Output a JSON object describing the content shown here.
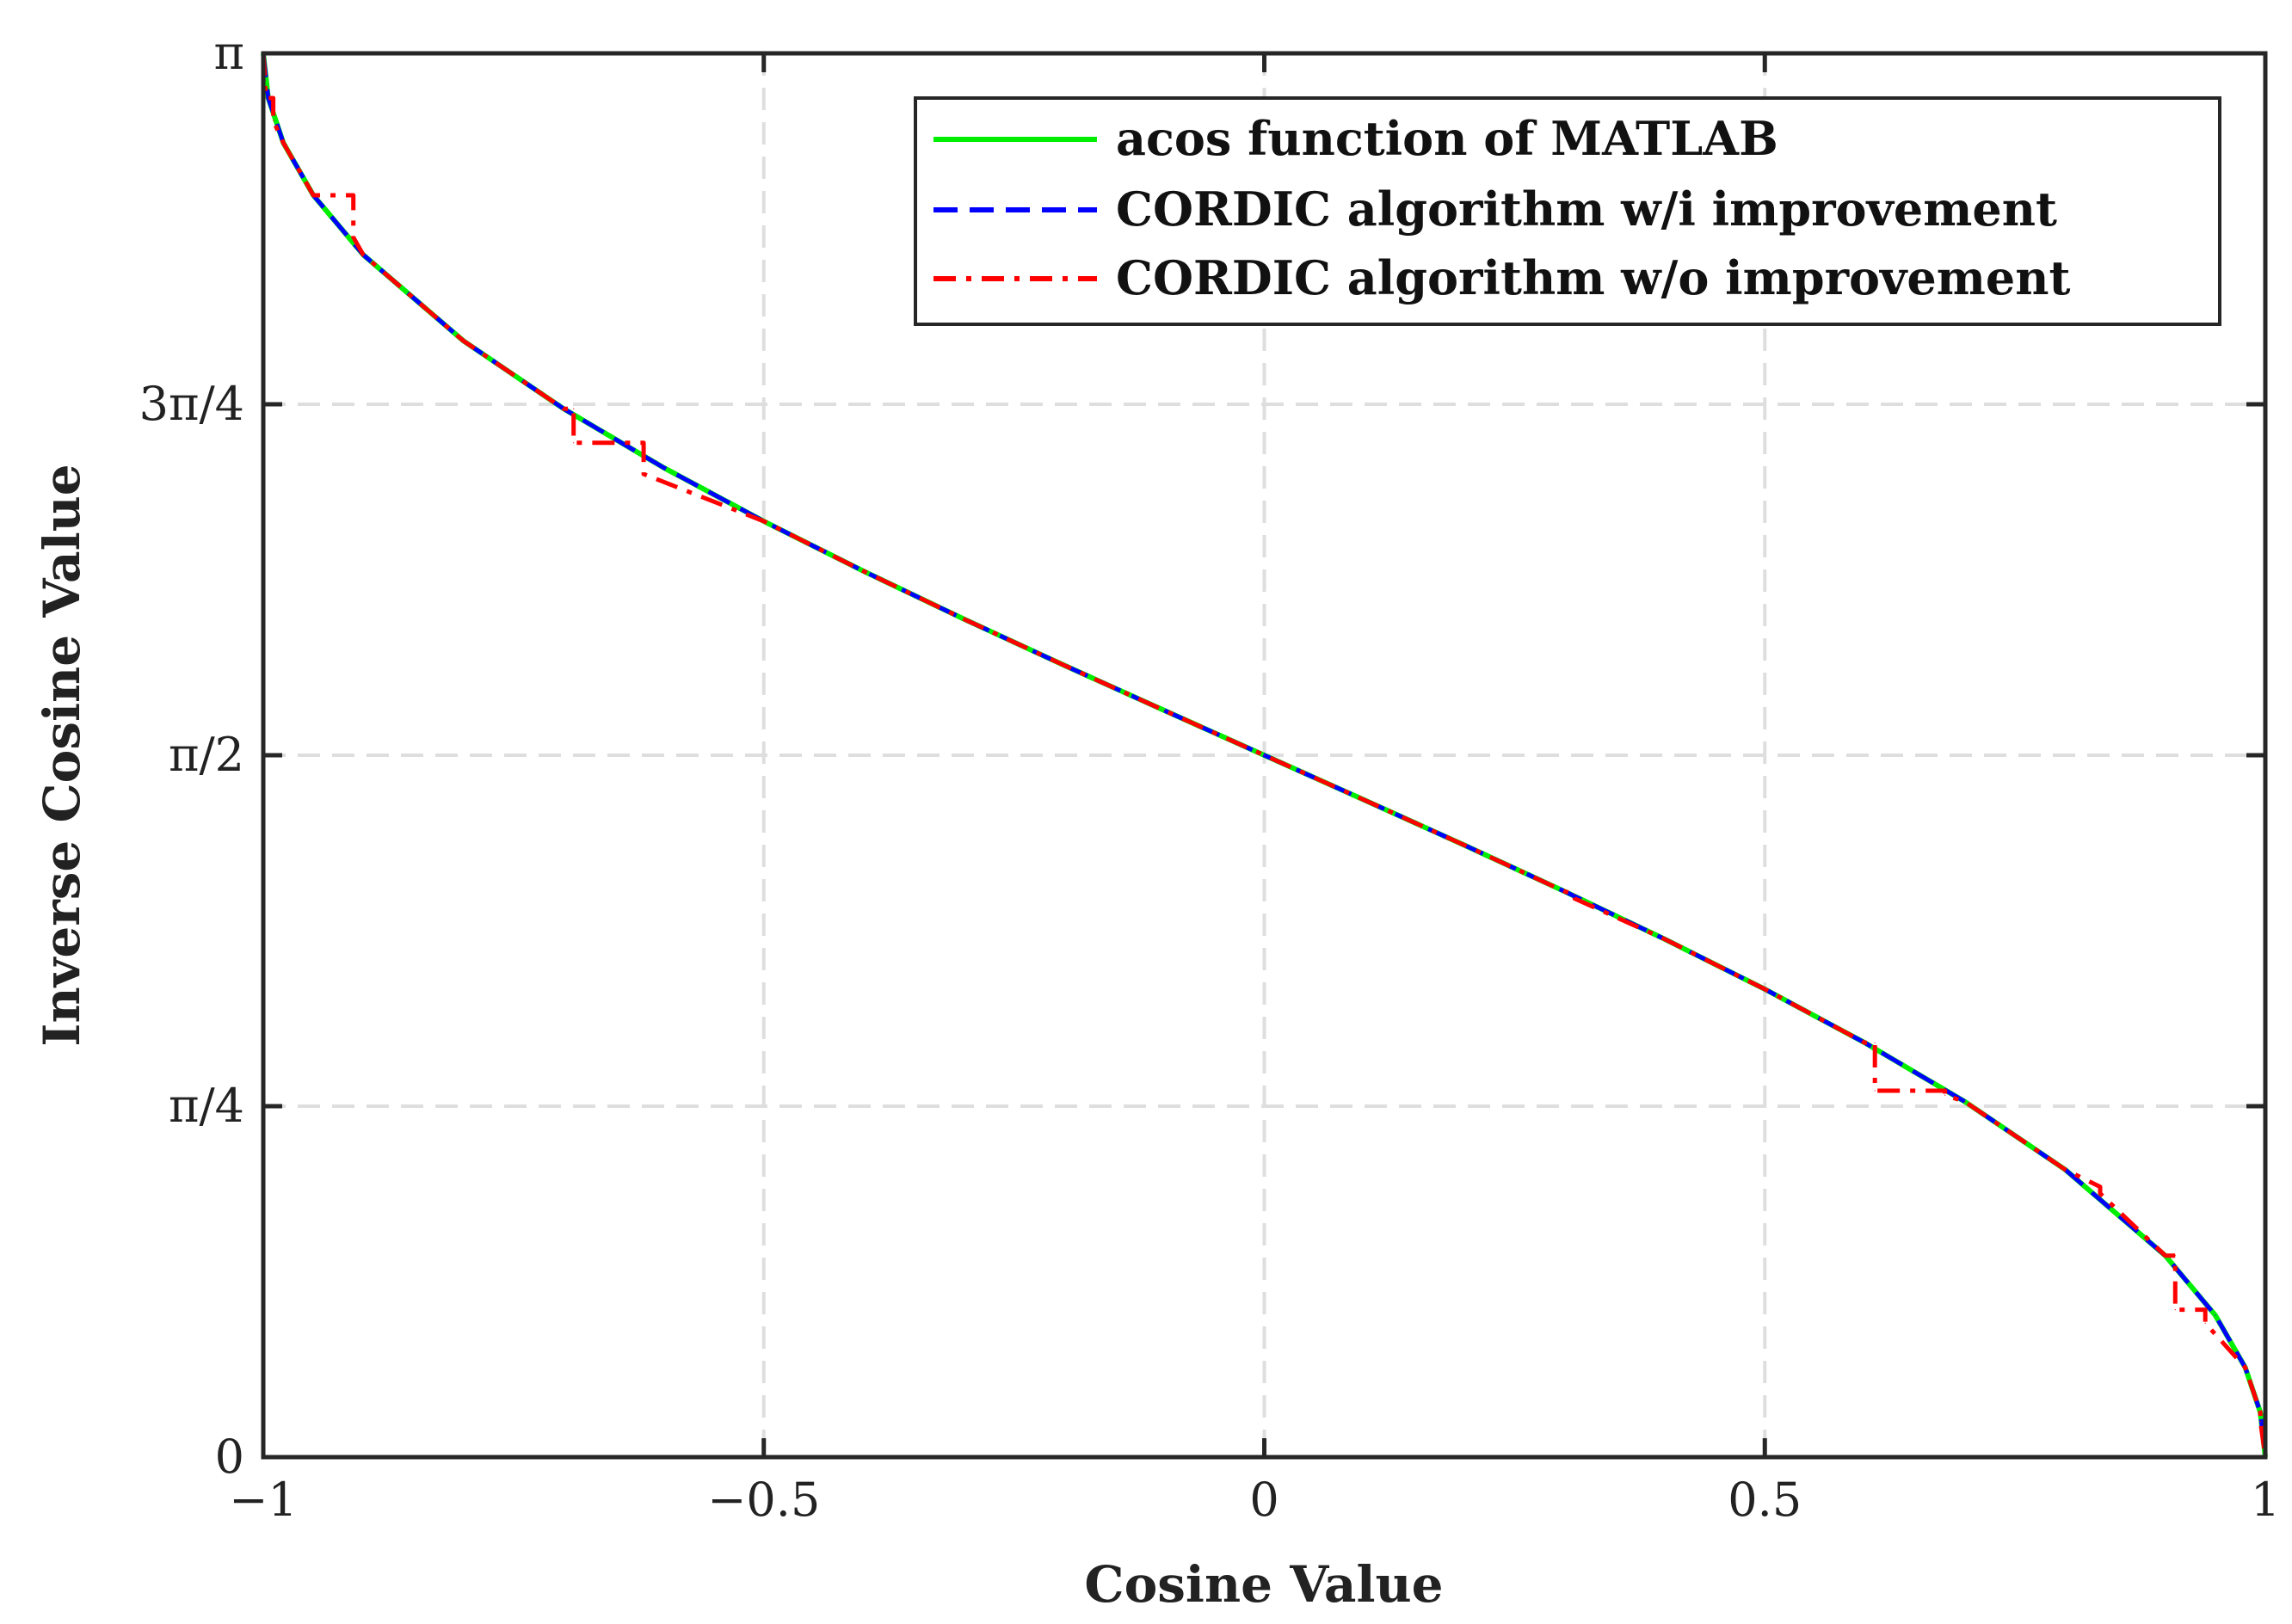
{
  "chart_data": {
    "type": "line",
    "title": "",
    "xlabel": "Cosine Value",
    "ylabel": "Inverse Cosine Value",
    "xlim": [
      -1,
      1
    ],
    "ylim": [
      0,
      3.14159265
    ],
    "grid": true,
    "legend_position": "top-right",
    "x_ticks": [
      {
        "value": -1,
        "label": "−1"
      },
      {
        "value": -0.5,
        "label": "−0.5"
      },
      {
        "value": 0,
        "label": "0"
      },
      {
        "value": 0.5,
        "label": "0.5"
      },
      {
        "value": 1,
        "label": "1"
      }
    ],
    "y_ticks": [
      {
        "value": 0,
        "label": "0"
      },
      {
        "value": 0.7854,
        "label": "π/4"
      },
      {
        "value": 1.5708,
        "label": "π/2"
      },
      {
        "value": 2.3562,
        "label": "3π/4"
      },
      {
        "value": 3.1416,
        "label": "π"
      }
    ],
    "series": [
      {
        "name": "acos function of MATLAB",
        "color": "#00ee00",
        "style": "solid",
        "x": [
          -1.0,
          -0.995,
          -0.98,
          -0.95,
          -0.9,
          -0.8,
          -0.7,
          -0.6,
          -0.5,
          -0.4,
          -0.3,
          -0.2,
          -0.1,
          0.0,
          0.1,
          0.2,
          0.3,
          0.4,
          0.5,
          0.6,
          0.7,
          0.8,
          0.9,
          0.95,
          0.98,
          0.995,
          1.0
        ],
        "y": [
          3.1416,
          3.0415,
          2.9413,
          2.824,
          2.6906,
          2.4981,
          2.3462,
          2.2143,
          2.0944,
          1.9823,
          1.8755,
          1.7722,
          1.671,
          1.5708,
          1.4706,
          1.3694,
          1.2661,
          1.1593,
          1.0472,
          0.9273,
          0.7954,
          0.6435,
          0.451,
          0.3176,
          0.2003,
          0.1001,
          0.0
        ]
      },
      {
        "name": "CORDIC algorithm w/i improvement",
        "color": "#0000ff",
        "style": "dashed",
        "x": [
          -1.0,
          -0.995,
          -0.98,
          -0.95,
          -0.9,
          -0.8,
          -0.7,
          -0.6,
          -0.5,
          -0.4,
          -0.3,
          -0.2,
          -0.1,
          0.0,
          0.1,
          0.2,
          0.3,
          0.4,
          0.5,
          0.6,
          0.7,
          0.8,
          0.9,
          0.95,
          0.98,
          0.995,
          1.0
        ],
        "y": [
          3.1416,
          3.0415,
          2.9413,
          2.824,
          2.6906,
          2.4981,
          2.3462,
          2.2143,
          2.0944,
          1.9823,
          1.8755,
          1.7722,
          1.671,
          1.5708,
          1.4706,
          1.3694,
          1.2661,
          1.1593,
          1.0472,
          0.9273,
          0.7954,
          0.6435,
          0.451,
          0.3176,
          0.2003,
          0.1001,
          0.0
        ]
      },
      {
        "name": "CORDIC algorithm w/o improvement",
        "color": "#ff0000",
        "style": "dashdot",
        "x": [
          -1.0,
          -0.998,
          -0.998,
          -0.99,
          -0.99,
          -0.98,
          -0.95,
          -0.91,
          -0.91,
          -0.9,
          -0.8,
          -0.7,
          -0.69,
          -0.69,
          -0.62,
          -0.62,
          -0.5,
          -0.4,
          -0.3,
          -0.2,
          -0.1,
          0.0,
          0.1,
          0.2,
          0.3,
          0.31,
          0.31,
          0.4,
          0.5,
          0.6,
          0.61,
          0.61,
          0.68,
          0.68,
          0.7,
          0.8,
          0.835,
          0.835,
          0.9,
          0.91,
          0.91,
          0.94,
          0.94,
          0.98,
          0.995,
          0.995,
          1.0
        ],
        "y": [
          3.1416,
          3.08,
          3.0415,
          3.0415,
          2.9913,
          2.9413,
          2.824,
          2.824,
          2.73,
          2.6906,
          2.4981,
          2.3462,
          2.3462,
          2.27,
          2.27,
          2.2,
          2.0944,
          1.9823,
          1.8755,
          1.7722,
          1.671,
          1.5708,
          1.4706,
          1.3694,
          1.2661,
          1.26,
          1.25,
          1.1593,
          1.0472,
          0.9273,
          0.9273,
          0.82,
          0.82,
          0.81,
          0.7954,
          0.6435,
          0.605,
          0.59,
          0.451,
          0.451,
          0.33,
          0.33,
          0.3,
          0.2003,
          0.1001,
          0.08,
          0.0
        ]
      }
    ]
  }
}
